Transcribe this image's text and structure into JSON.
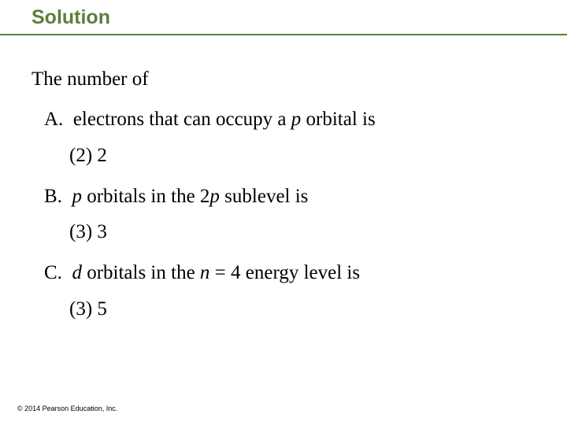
{
  "heading": "Solution",
  "lead": "The number of",
  "items": {
    "a": {
      "letter": "A.",
      "pre": "electrons that can occupy a ",
      "var": "p",
      "post": " orbital is",
      "answer": "(2) 2"
    },
    "b": {
      "letter": "B.",
      "var1": "p",
      "mid1": " orbitals in the 2",
      "var2": "p",
      "post": " sublevel is",
      "answer": "(3) 3"
    },
    "c": {
      "letter": "C.",
      "var1": "d",
      "mid1": " orbitals in the ",
      "var2": "n",
      "post": " = 4 energy level is",
      "answer": "(3) 5"
    }
  },
  "copyright": "© 2014 Pearson Education, Inc.",
  "colors": {
    "heading": "#5c7f3e",
    "text": "#000000",
    "background": "#ffffff"
  },
  "fonts": {
    "heading_family": "Arial",
    "heading_size_pt": 19,
    "heading_weight": "bold",
    "body_family": "Times New Roman",
    "body_size_pt": 19,
    "copyright_size_pt": 7
  }
}
